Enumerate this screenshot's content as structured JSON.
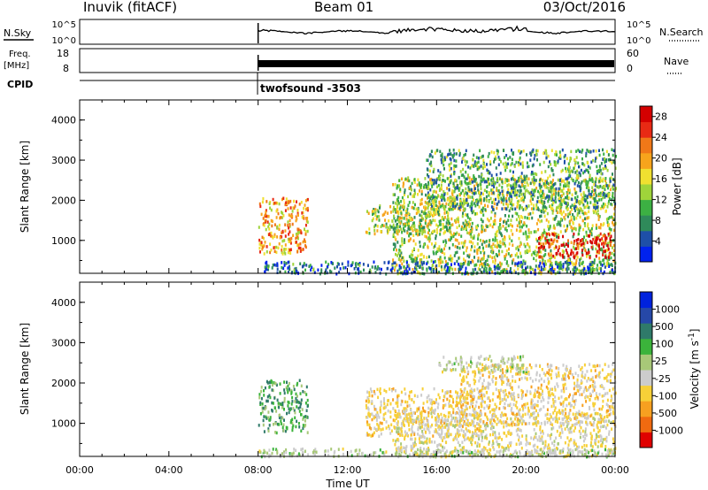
{
  "header": {
    "radar": "Inuvik (fitACF)",
    "beam": "Beam 01",
    "date": "03/Oct/2016"
  },
  "meta_panels": {
    "nsky": {
      "label": "N.Sky",
      "ticks": [
        "10^5",
        "10^0"
      ],
      "right_ticks": [
        "10^5",
        "10^0"
      ],
      "right_label": "N.Search"
    },
    "freq": {
      "label_line1": "Freq.",
      "label_line2": "[MHz]",
      "ticks": [
        "18",
        "8"
      ],
      "right_ticks": [
        "60",
        "0"
      ],
      "right_label": "Nave"
    },
    "cpid": {
      "label": "CPID",
      "program": "twofsound -3503"
    }
  },
  "x_axis": {
    "ticks": [
      "00:00",
      "04:00",
      "08:00",
      "12:00",
      "16:00",
      "20:00",
      "00:00"
    ],
    "label": "Time UT"
  },
  "colors": {
    "power_scale": [
      "#0022ee",
      "#1e4fa8",
      "#2f8a5a",
      "#3cb043",
      "#9fd43a",
      "#f0e030",
      "#f7a41c",
      "#f07818",
      "#e82a14",
      "#d40000"
    ],
    "velocity_scale": [
      "#e00000",
      "#f06a10",
      "#f7a020",
      "#f7d038",
      "#cccccc",
      "#a8c878",
      "#3bb33b",
      "#2f7a6a",
      "#2648a8",
      "#0022dd"
    ]
  },
  "chart_data": [
    {
      "type": "heatmap",
      "title": "Power [dB]",
      "ylabel": "Slant Range [km]",
      "xlabel": "Time UT",
      "xlim": [
        0,
        24
      ],
      "ylim": [
        180,
        4500
      ],
      "yticks": [
        1000,
        2000,
        3000,
        4000
      ],
      "colorbar": {
        "label": "Power [dB]",
        "ticks": [
          4,
          8,
          12,
          16,
          20,
          24,
          28
        ],
        "range": [
          0,
          30
        ]
      },
      "blobs": [
        {
          "t": [
            8.0,
            10.2
          ],
          "r": [
            700,
            2100
          ],
          "value": 20
        },
        {
          "t": [
            12.8,
            16.5
          ],
          "r": [
            1200,
            1900
          ],
          "value": 14
        },
        {
          "t": [
            14.0,
            24.0
          ],
          "r": [
            200,
            2600
          ],
          "value": 14
        },
        {
          "t": [
            20.5,
            23.8
          ],
          "r": [
            600,
            1200
          ],
          "value": 28
        },
        {
          "t": [
            8.0,
            24.0
          ],
          "r": [
            200,
            500
          ],
          "value": 6
        },
        {
          "t": [
            15.5,
            24.0
          ],
          "r": [
            1800,
            3300
          ],
          "value": 10
        }
      ]
    },
    {
      "type": "heatmap",
      "title": "Velocity [m s^-1]",
      "ylabel": "Slant Range [km]",
      "xlabel": "Time UT",
      "xlim": [
        0,
        24
      ],
      "ylim": [
        180,
        4500
      ],
      "yticks": [
        1000,
        2000,
        3000,
        4000
      ],
      "colorbar": {
        "label": "Velocity [m s",
        "label_sup": "-1",
        "label_end": "]",
        "ticks": [
          "1000",
          "500",
          "100",
          "25",
          "-25",
          "-100",
          "-500",
          "-1000"
        ],
        "range": [
          -1250,
          1250
        ]
      },
      "blobs": [
        {
          "t": [
            8.0,
            10.2
          ],
          "r": [
            800,
            2100
          ],
          "value": 400
        },
        {
          "t": [
            12.8,
            18.0
          ],
          "r": [
            700,
            1900
          ],
          "value": -300
        },
        {
          "t": [
            14.0,
            24.0
          ],
          "r": [
            200,
            1300
          ],
          "value": -200
        },
        {
          "t": [
            17.0,
            24.0
          ],
          "r": [
            1000,
            2500
          ],
          "value": -300
        },
        {
          "t": [
            8.0,
            24.0
          ],
          "r": [
            200,
            400
          ],
          "value": 30
        },
        {
          "t": [
            16.0,
            20.0
          ],
          "r": [
            2300,
            2700
          ],
          "value": 0
        }
      ]
    }
  ]
}
